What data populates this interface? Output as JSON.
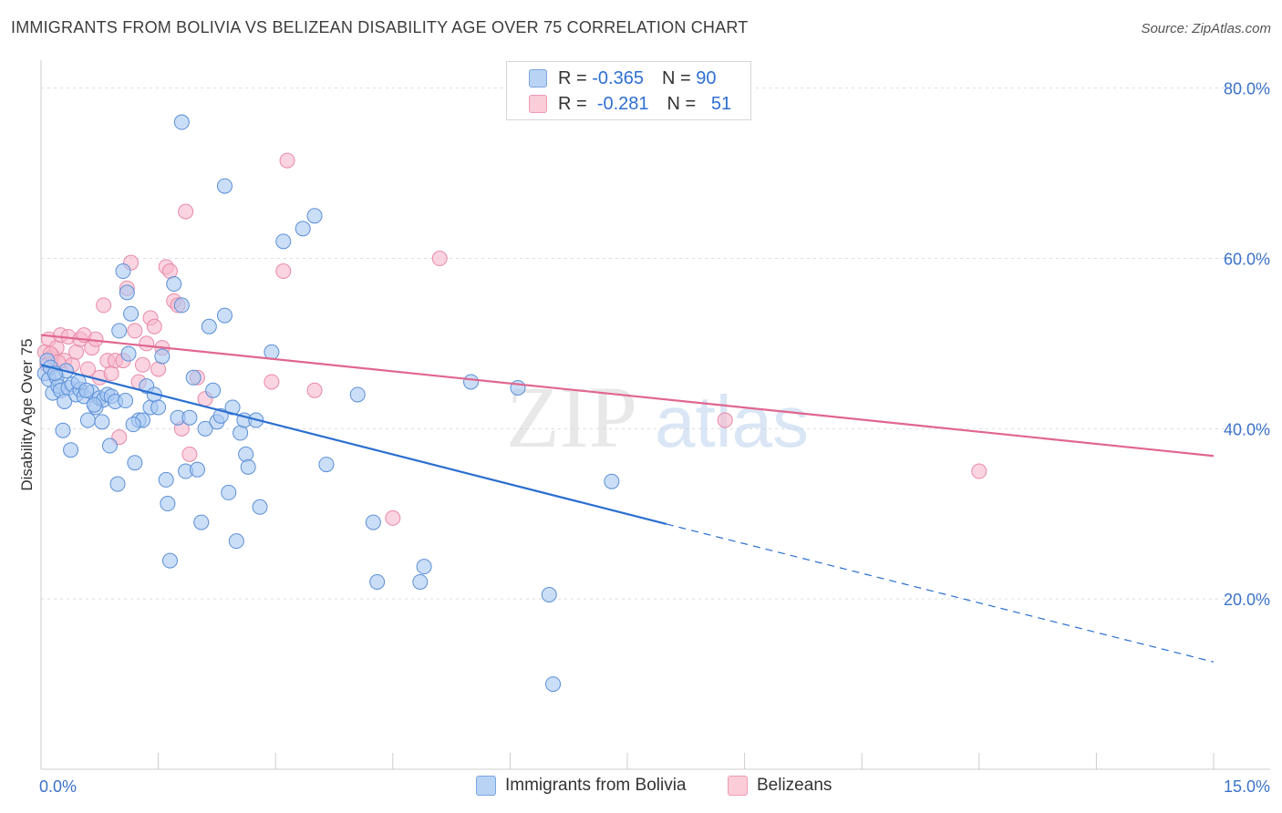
{
  "title": "IMMIGRANTS FROM BOLIVIA VS BELIZEAN DISABILITY AGE OVER 75 CORRELATION CHART",
  "source": "Source: ZipAtlas.com",
  "watermark": {
    "zip": "ZIP",
    "atlas": "atlas"
  },
  "legend": {
    "rows": [
      {
        "r_label": "R =",
        "r_value": "-0.365",
        "n_label": "N =",
        "n_value": "90"
      },
      {
        "r_label": "R =",
        "r_value": "-0.281",
        "n_label": "N =",
        "n_value": "51"
      }
    ]
  },
  "bottom_legend": [
    "Immigrants from Bolivia",
    "Belizeans"
  ],
  "colors": {
    "blue_fill": "#a8c8f2",
    "blue_stroke": "#5b8fd6",
    "blue_line": "#2a6fd0",
    "pink_fill": "#f7b8cc",
    "pink_stroke": "#e88aa8",
    "pink_line": "#e0668f",
    "axis_text": "#3b72c8",
    "grid": "#dddddd"
  },
  "chart_data": {
    "type": "scatter",
    "title": "IMMIGRANTS FROM BOLIVIA VS BELIZEAN DISABILITY AGE OVER 75 CORRELATION CHART",
    "xlabel": "",
    "ylabel": "Disability Age Over 75",
    "xlim": [
      0,
      15
    ],
    "ylim": [
      0,
      82
    ],
    "x_tick_labels": [
      "0.0%",
      "15.0%"
    ],
    "y_ticks": [
      20,
      40,
      60,
      80
    ],
    "y_tick_labels": [
      "20.0%",
      "40.0%",
      "60.0%",
      "80.0%"
    ],
    "grid": true,
    "legend_position": "top-center",
    "series": [
      {
        "name": "Immigrants from Bolivia",
        "color": "#a8c8f2",
        "r": -0.365,
        "n": 90,
        "trend": {
          "x": [
            0,
            8.0
          ],
          "y": [
            47.5,
            28.8
          ],
          "dashed_to": [
            15,
            12.6
          ]
        },
        "points": [
          [
            0.05,
            46.5
          ],
          [
            0.08,
            48.0
          ],
          [
            0.1,
            45.8
          ],
          [
            0.12,
            47.2
          ],
          [
            0.15,
            44.2
          ],
          [
            0.2,
            46.0
          ],
          [
            0.22,
            45.0
          ],
          [
            0.25,
            44.5
          ],
          [
            0.3,
            43.2
          ],
          [
            0.32,
            46.8
          ],
          [
            0.35,
            44.8
          ],
          [
            0.4,
            45.2
          ],
          [
            0.45,
            44.0
          ],
          [
            0.5,
            44.6
          ],
          [
            0.55,
            43.8
          ],
          [
            0.6,
            41.0
          ],
          [
            0.65,
            44.3
          ],
          [
            0.7,
            42.5
          ],
          [
            0.75,
            43.6
          ],
          [
            0.8,
            43.4
          ],
          [
            0.85,
            44.0
          ],
          [
            0.9,
            43.8
          ],
          [
            0.95,
            43.2
          ],
          [
            1.0,
            51.5
          ],
          [
            1.05,
            58.5
          ],
          [
            1.1,
            56.0
          ],
          [
            1.12,
            48.8
          ],
          [
            1.15,
            53.5
          ],
          [
            1.2,
            36.0
          ],
          [
            1.25,
            41.0
          ],
          [
            1.3,
            41.0
          ],
          [
            1.35,
            45.0
          ],
          [
            1.4,
            42.5
          ],
          [
            1.45,
            44.0
          ],
          [
            1.5,
            42.5
          ],
          [
            1.55,
            48.5
          ],
          [
            1.6,
            34.0
          ],
          [
            1.62,
            31.2
          ],
          [
            1.65,
            24.5
          ],
          [
            1.7,
            57.0
          ],
          [
            1.75,
            41.3
          ],
          [
            1.8,
            54.5
          ],
          [
            1.85,
            35.0
          ],
          [
            1.9,
            41.3
          ],
          [
            1.95,
            46.0
          ],
          [
            2.0,
            35.2
          ],
          [
            2.05,
            29.0
          ],
          [
            2.1,
            40.0
          ],
          [
            2.15,
            52.0
          ],
          [
            2.2,
            44.5
          ],
          [
            2.25,
            40.8
          ],
          [
            2.3,
            41.5
          ],
          [
            2.35,
            53.3
          ],
          [
            2.4,
            32.5
          ],
          [
            2.45,
            42.5
          ],
          [
            2.5,
            26.8
          ],
          [
            2.55,
            39.5
          ],
          [
            2.6,
            41.0
          ],
          [
            2.62,
            37.0
          ],
          [
            2.65,
            35.5
          ],
          [
            2.75,
            41.0
          ],
          [
            2.8,
            30.8
          ],
          [
            2.95,
            49.0
          ],
          [
            3.35,
            63.5
          ],
          [
            3.5,
            65.0
          ],
          [
            3.65,
            35.8
          ],
          [
            4.05,
            44.0
          ],
          [
            4.25,
            29.0
          ],
          [
            4.3,
            22.0
          ],
          [
            4.85,
            22.0
          ],
          [
            4.9,
            23.8
          ],
          [
            5.5,
            45.5
          ],
          [
            6.1,
            44.8
          ],
          [
            6.5,
            20.5
          ],
          [
            6.55,
            10.0
          ],
          [
            7.3,
            33.8
          ],
          [
            1.8,
            76.0
          ],
          [
            2.35,
            68.5
          ],
          [
            3.1,
            62.0
          ],
          [
            0.18,
            46.5
          ],
          [
            0.28,
            39.8
          ],
          [
            0.38,
            37.5
          ],
          [
            0.48,
            45.5
          ],
          [
            0.58,
            44.5
          ],
          [
            0.68,
            42.8
          ],
          [
            0.78,
            40.8
          ],
          [
            0.88,
            38.0
          ],
          [
            0.98,
            33.5
          ],
          [
            1.08,
            43.3
          ],
          [
            1.18,
            40.5
          ]
        ]
      },
      {
        "name": "Belizeans",
        "color": "#f7b8cc",
        "r": -0.281,
        "n": 51,
        "trend": {
          "x": [
            0,
            15
          ],
          "y": [
            51.0,
            36.8
          ]
        },
        "points": [
          [
            0.05,
            49.0
          ],
          [
            0.08,
            47.5
          ],
          [
            0.1,
            50.5
          ],
          [
            0.15,
            48.5
          ],
          [
            0.2,
            49.5
          ],
          [
            0.25,
            51.0
          ],
          [
            0.3,
            48.0
          ],
          [
            0.35,
            50.8
          ],
          [
            0.4,
            47.5
          ],
          [
            0.45,
            49.0
          ],
          [
            0.5,
            50.5
          ],
          [
            0.55,
            51.0
          ],
          [
            0.6,
            47.0
          ],
          [
            0.65,
            49.5
          ],
          [
            0.7,
            50.5
          ],
          [
            0.75,
            46.0
          ],
          [
            0.8,
            54.5
          ],
          [
            0.85,
            48.0
          ],
          [
            0.9,
            46.5
          ],
          [
            0.95,
            48.0
          ],
          [
            1.0,
            39.0
          ],
          [
            1.05,
            48.0
          ],
          [
            1.1,
            56.5
          ],
          [
            1.15,
            59.5
          ],
          [
            1.2,
            51.5
          ],
          [
            1.25,
            45.5
          ],
          [
            1.3,
            47.5
          ],
          [
            1.35,
            50.0
          ],
          [
            1.4,
            53.0
          ],
          [
            1.45,
            52.0
          ],
          [
            1.5,
            47.0
          ],
          [
            1.55,
            49.5
          ],
          [
            1.6,
            59.0
          ],
          [
            1.65,
            58.5
          ],
          [
            1.7,
            55.0
          ],
          [
            1.75,
            54.5
          ],
          [
            1.8,
            40.0
          ],
          [
            1.85,
            65.5
          ],
          [
            1.9,
            37.0
          ],
          [
            2.0,
            46.0
          ],
          [
            2.1,
            43.5
          ],
          [
            2.95,
            45.5
          ],
          [
            3.1,
            58.5
          ],
          [
            3.15,
            71.5
          ],
          [
            3.5,
            44.5
          ],
          [
            4.5,
            29.5
          ],
          [
            5.1,
            60.0
          ],
          [
            8.75,
            41.0
          ],
          [
            12.0,
            35.0
          ],
          [
            0.12,
            48.8
          ],
          [
            0.22,
            47.8
          ]
        ]
      }
    ]
  }
}
